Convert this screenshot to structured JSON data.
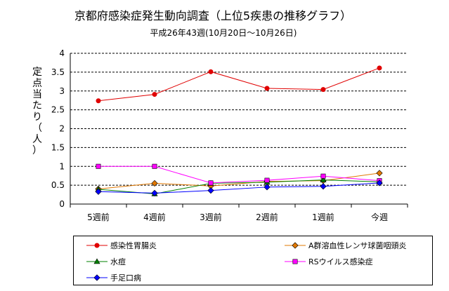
{
  "chart_data": {
    "type": "line",
    "title": "京都府感染症発生動向調査（上位5疾患の推移グラフ）",
    "subtitle": "平成26年43週(10月20日〜10月26日)",
    "xlabel": "",
    "ylabel": "定点当たり（人）",
    "ylim": [
      0,
      4
    ],
    "yticks": [
      "0",
      "0.5",
      "1",
      "1.5",
      "2",
      "2.5",
      "3",
      "3.5",
      "4"
    ],
    "grid": "horizontal dashed",
    "legend_position": "bottom",
    "categories": [
      "5週前",
      "4週前",
      "3週前",
      "2週前",
      "1週前",
      "今週"
    ],
    "series": [
      {
        "name": "感染性胃腸炎",
        "color": "#e00000",
        "marker": "circle",
        "values": [
          2.74,
          2.91,
          3.51,
          3.07,
          3.04,
          3.61
        ]
      },
      {
        "name": "A群溶血性レンサ球菌咽頭炎",
        "color": "#e07800",
        "marker": "diamond",
        "values": [
          0.4,
          0.55,
          0.48,
          0.6,
          0.62,
          0.82
        ]
      },
      {
        "name": "水痘",
        "color": "#008000",
        "marker": "triangle",
        "values": [
          0.39,
          0.27,
          0.55,
          0.58,
          0.64,
          0.59
        ]
      },
      {
        "name": "RSウイルス感染症",
        "color": "#ff00ff",
        "marker": "square",
        "values": [
          1.0,
          1.0,
          0.56,
          0.63,
          0.74,
          0.62
        ]
      },
      {
        "name": "手足口病",
        "color": "#0000ff",
        "marker": "diamond",
        "values": [
          0.33,
          0.29,
          0.36,
          0.45,
          0.47,
          0.56
        ]
      }
    ]
  }
}
